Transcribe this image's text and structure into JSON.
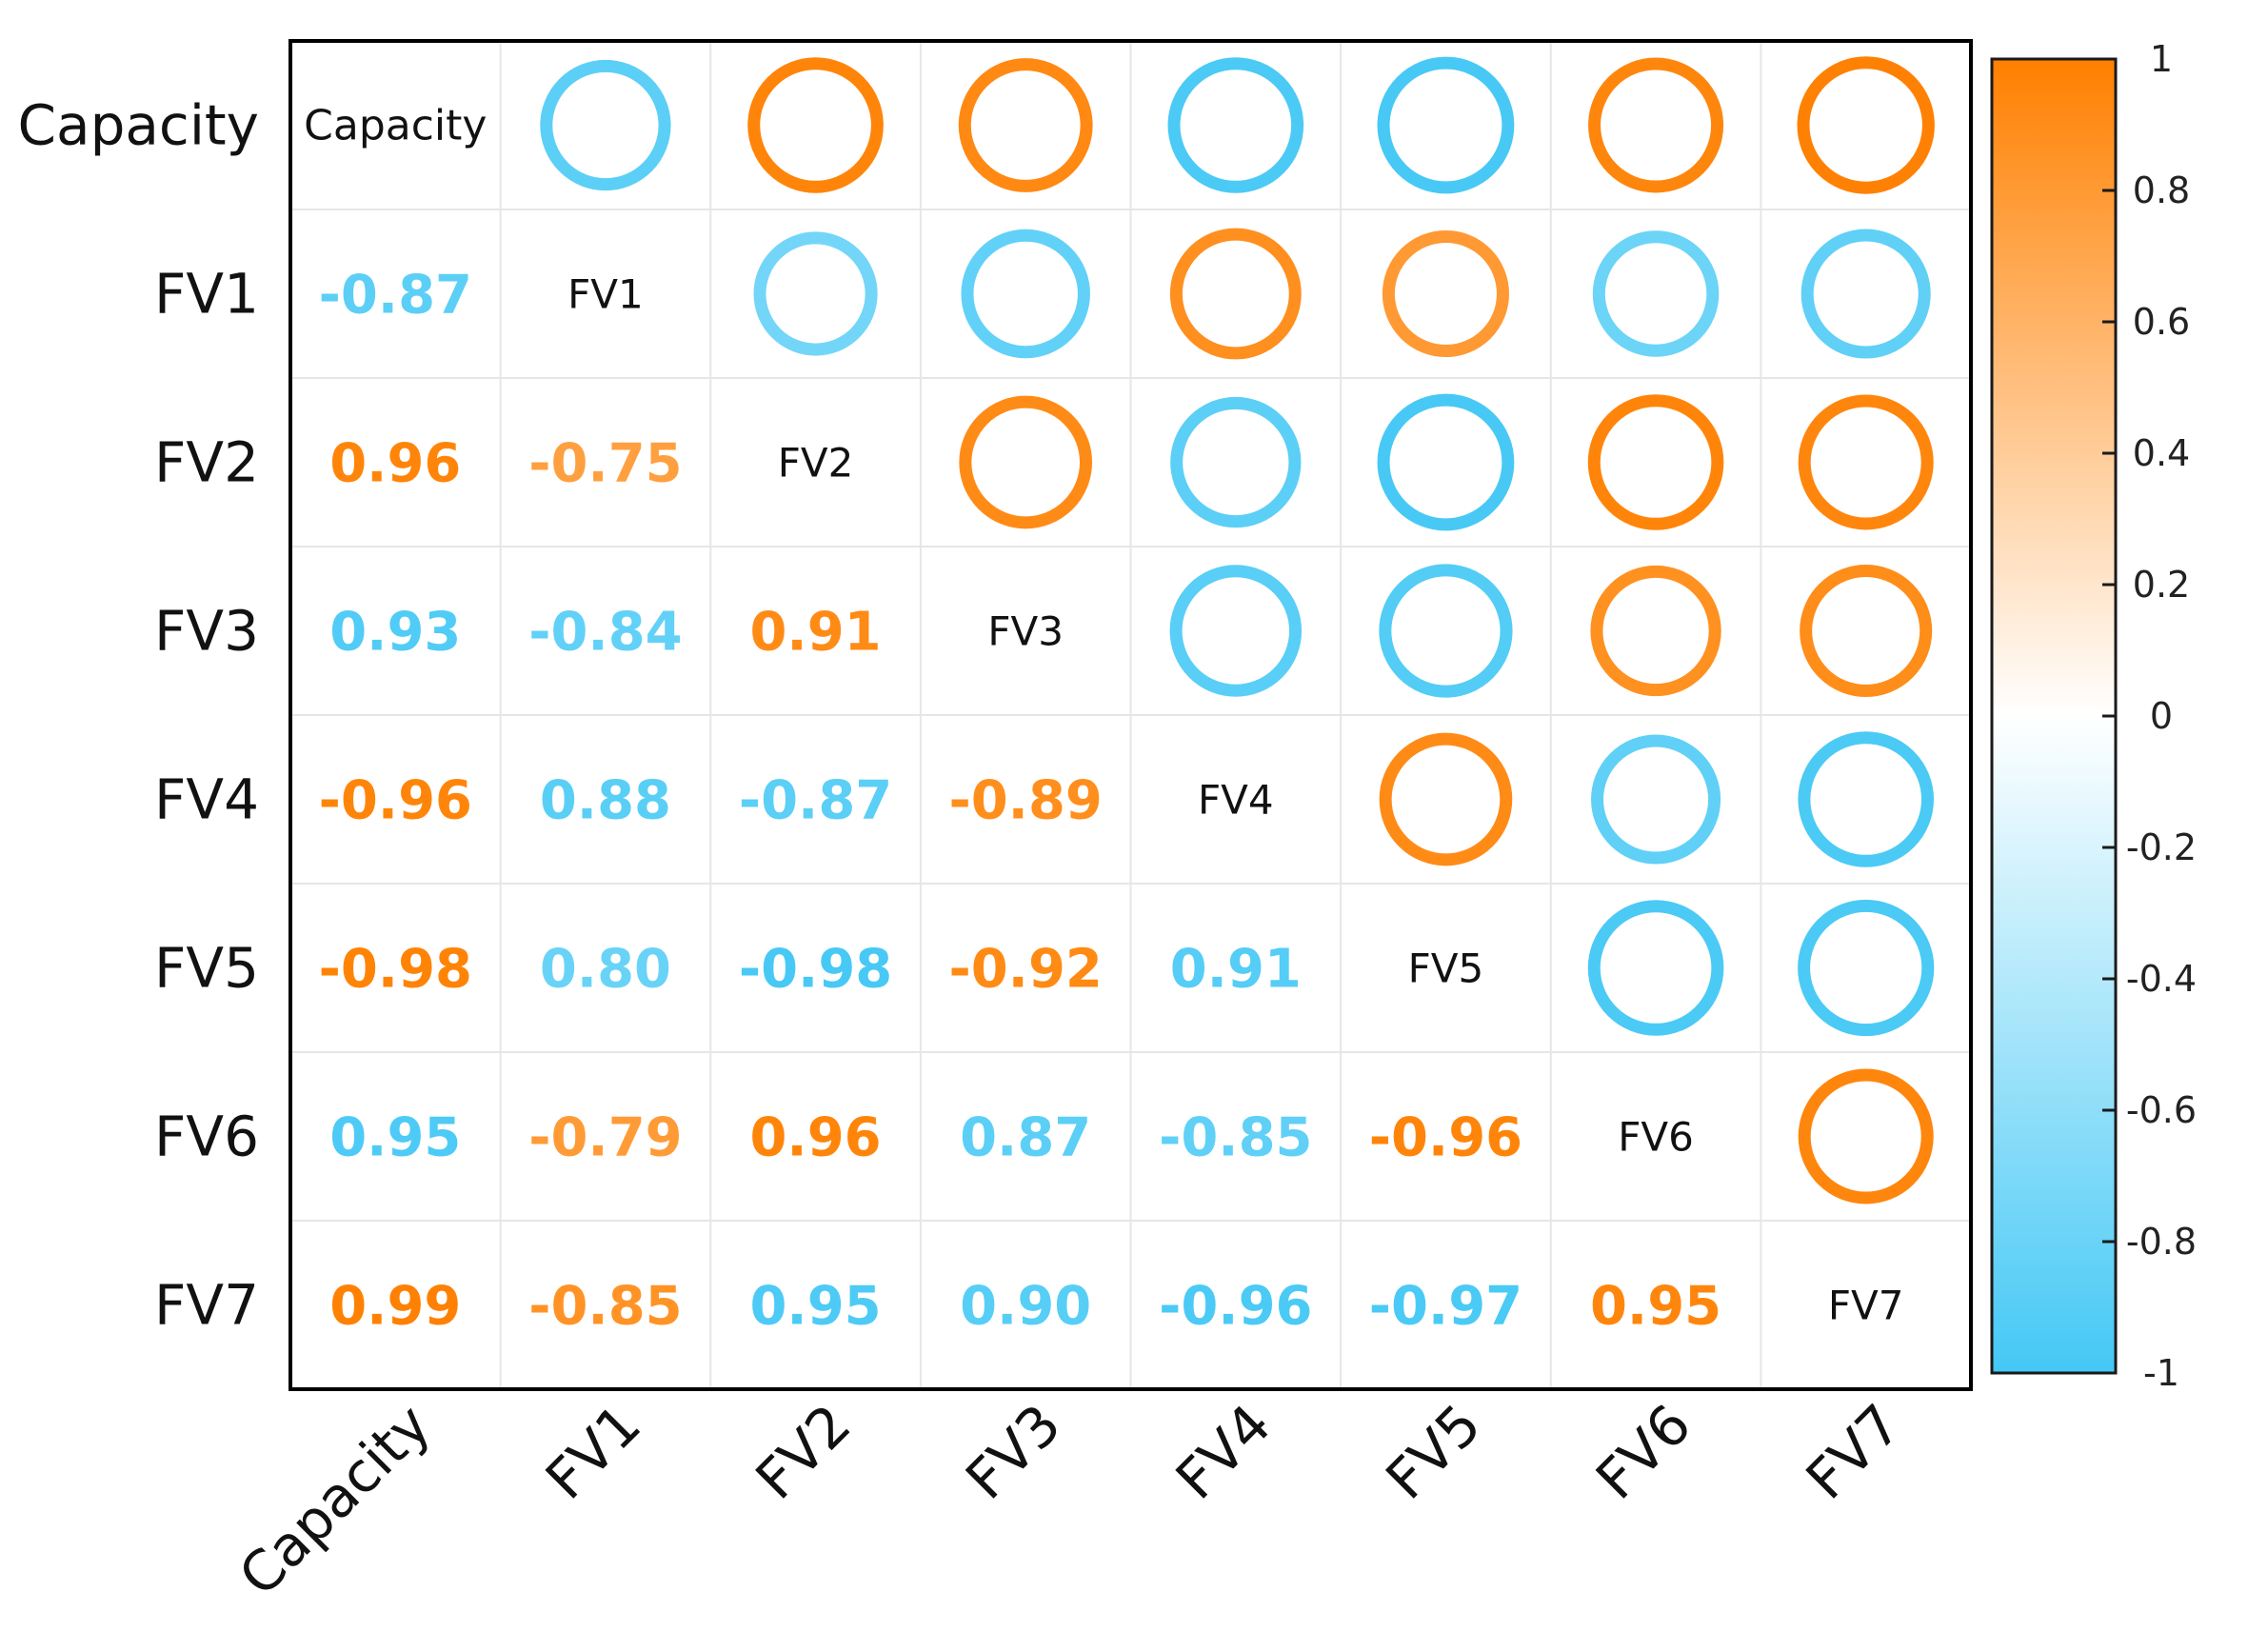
{
  "chart_data": {
    "type": "heatmap",
    "variant": "correlation-matrix",
    "upper_triangle": "ring markers colored by correlation",
    "lower_triangle": "numeric correlation coefficients",
    "variables": [
      "Capacity",
      "FV1",
      "FV2",
      "FV3",
      "FV4",
      "FV5",
      "FV6",
      "FV7"
    ],
    "matrix": [
      [
        1,
        -0.87,
        0.96,
        0.93,
        -0.96,
        -0.98,
        0.95,
        0.99
      ],
      [
        -0.87,
        1,
        -0.75,
        -0.84,
        0.88,
        0.8,
        -0.79,
        -0.85
      ],
      [
        0.96,
        -0.75,
        1,
        0.91,
        -0.87,
        -0.98,
        0.96,
        0.95
      ],
      [
        0.93,
        -0.84,
        0.91,
        1,
        -0.89,
        -0.92,
        0.87,
        0.9
      ],
      [
        -0.96,
        0.88,
        -0.87,
        -0.89,
        1,
        0.91,
        -0.85,
        -0.96
      ],
      [
        -0.98,
        0.8,
        -0.98,
        -0.92,
        0.91,
        1,
        -0.96,
        -0.97
      ],
      [
        0.95,
        -0.79,
        0.96,
        0.87,
        -0.85,
        -0.96,
        1,
        0.95
      ],
      [
        0.99,
        -0.85,
        0.95,
        0.9,
        -0.96,
        -0.97,
        0.95,
        1
      ]
    ],
    "value_labels": [
      [
        null,
        null,
        null,
        null,
        null,
        null,
        null,
        null
      ],
      [
        "-0.87",
        null,
        null,
        null,
        null,
        null,
        null,
        null
      ],
      [
        "0.96",
        "-0.75",
        null,
        null,
        null,
        null,
        null,
        null
      ],
      [
        "0.93",
        "-0.84",
        "0.91",
        null,
        null,
        null,
        null,
        null
      ],
      [
        "-0.96",
        "0.88",
        "-0.87",
        "-0.89",
        null,
        null,
        null,
        null
      ],
      [
        "-0.98",
        "0.80",
        "-0.98",
        "-0.92",
        "0.91",
        null,
        null,
        null
      ],
      [
        "0.95",
        "-0.79",
        "0.96",
        "0.87",
        "-0.85",
        "-0.96",
        null,
        null
      ],
      [
        "0.99",
        "-0.85",
        "0.95",
        "0.90",
        "-0.96",
        "-0.97",
        "0.95",
        null
      ]
    ],
    "label_color_sign": [
      [
        null,
        null,
        null,
        null,
        null,
        null,
        null,
        null
      ],
      [
        -1,
        null,
        null,
        null,
        null,
        null,
        null,
        null
      ],
      [
        1,
        1,
        null,
        null,
        null,
        null,
        null,
        null
      ],
      [
        -1,
        -1,
        1,
        null,
        null,
        null,
        null,
        null
      ],
      [
        1,
        -1,
        -1,
        1,
        null,
        null,
        null,
        null
      ],
      [
        1,
        -1,
        -1,
        1,
        -1,
        null,
        null,
        null
      ],
      [
        -1,
        1,
        1,
        -1,
        -1,
        1,
        null,
        null
      ],
      [
        1,
        1,
        -1,
        -1,
        -1,
        -1,
        1,
        null
      ]
    ],
    "ring_values": [
      [
        null,
        -0.87,
        0.96,
        0.93,
        -0.96,
        -0.98,
        0.95,
        0.99
      ],
      [
        null,
        null,
        -0.75,
        -0.84,
        0.88,
        0.8,
        -0.79,
        -0.85
      ],
      [
        null,
        null,
        null,
        0.91,
        -0.87,
        -0.98,
        0.96,
        0.95
      ],
      [
        null,
        null,
        null,
        null,
        -0.89,
        -0.92,
        0.87,
        0.9
      ],
      [
        null,
        null,
        null,
        null,
        null,
        0.91,
        -0.85,
        -0.96
      ],
      [
        null,
        null,
        null,
        null,
        null,
        null,
        -0.96,
        -0.97
      ],
      [
        null,
        null,
        null,
        null,
        null,
        null,
        null,
        0.95
      ],
      [
        null,
        null,
        null,
        null,
        null,
        null,
        null,
        null
      ]
    ],
    "colorbar": {
      "range": [
        -1,
        1
      ],
      "ticks": [
        1,
        0.8,
        0.6,
        0.4,
        0.2,
        0,
        -0.2,
        -0.4,
        -0.6,
        -0.8,
        -1
      ],
      "tick_labels": [
        "1",
        "0.8",
        "0.6",
        "0.4",
        "0.2",
        "0",
        "-0.2",
        "-0.4",
        "-0.6",
        "-0.8",
        "-1"
      ],
      "positive_color": "#FF8000",
      "zero_color": "#FFFFFF",
      "negative_color": "#44C8F5",
      "placement": "right"
    },
    "grid": true,
    "x_tick_rotation": "diagonal"
  }
}
